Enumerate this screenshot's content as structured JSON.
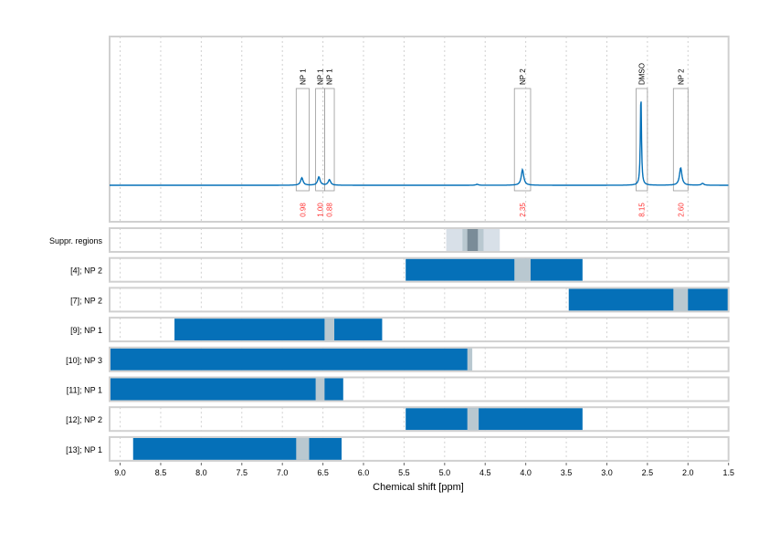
{
  "chart_data": [
    {
      "type": "line",
      "xlim": [
        9.13,
        1.5
      ],
      "grid": true,
      "colors": {
        "spectrum": "#0570b8",
        "integral_label": "#ff3333",
        "box": "#999999"
      },
      "peaks": [
        {
          "ppm": 6.76,
          "intensity": 0.08
        },
        {
          "ppm": 6.55,
          "intensity": 0.09
        },
        {
          "ppm": 6.42,
          "intensity": 0.06
        },
        {
          "ppm": 4.6,
          "intensity": 0.01
        },
        {
          "ppm": 4.04,
          "intensity": 0.17
        },
        {
          "ppm": 2.58,
          "intensity": 1.0
        },
        {
          "ppm": 2.09,
          "intensity": 0.19
        },
        {
          "ppm": 1.82,
          "intensity": 0.02
        }
      ],
      "annotations": [
        {
          "label": "NP 1",
          "from": 6.83,
          "to": 6.67,
          "integral": "0.98"
        },
        {
          "label": "NP 1",
          "from": 6.59,
          "to": 6.48,
          "integral": "1.00"
        },
        {
          "label": "NP 1",
          "from": 6.48,
          "to": 6.36,
          "integral": "0.88"
        },
        {
          "label": "NP 2",
          "from": 4.14,
          "to": 3.94,
          "integral": "2.35"
        },
        {
          "label": "DMSO",
          "from": 2.64,
          "to": 2.5,
          "integral": "8.15"
        },
        {
          "label": "NP 2",
          "from": 2.18,
          "to": 2.0,
          "integral": "2.60"
        }
      ]
    },
    {
      "type": "bar",
      "xlabel": "Chemical shift [ppm]",
      "xlim": [
        9.13,
        1.5
      ],
      "xticks": [
        "9.0",
        "8.5",
        "8.0",
        "7.5",
        "7.0",
        "6.5",
        "6.0",
        "5.5",
        "5.0",
        "4.5",
        "4.0",
        "3.5",
        "3.0",
        "2.5",
        "2.0",
        "1.5"
      ],
      "colors": {
        "range": "#0570b8",
        "overlap": "#b9c8d0",
        "suppr_light": "#d8e0e8",
        "suppr_mid": "#b9c8d0",
        "suppr_dark": "#7a8c98"
      },
      "suppr": {
        "label": "Suppr. regions",
        "light": [
          4.98,
          4.32
        ],
        "mid": [
          4.78,
          4.52
        ],
        "dark": [
          4.72,
          4.59
        ]
      },
      "rows": [
        {
          "label": "[4]; NP 2",
          "range": [
            5.48,
            3.3
          ],
          "overlap": [
            4.14,
            3.94
          ]
        },
        {
          "label": "[7]; NP 2",
          "range": [
            3.47,
            1.5
          ],
          "overlap": [
            2.18,
            2.0
          ]
        },
        {
          "label": "[9]; NP 1",
          "range": [
            8.33,
            5.77
          ],
          "overlap": [
            6.48,
            6.36
          ]
        },
        {
          "label": "[10]; NP 3",
          "range": [
            9.13,
            4.66
          ],
          "overlap": [
            4.72,
            4.66
          ]
        },
        {
          "label": "[11]; NP 1",
          "range": [
            9.13,
            6.25
          ],
          "overlap": [
            6.59,
            6.48
          ]
        },
        {
          "label": "[12]; NP 2",
          "range": [
            5.48,
            3.3
          ],
          "overlap": [
            4.72,
            4.58
          ]
        },
        {
          "label": "[13]; NP 1",
          "range": [
            8.84,
            6.27
          ],
          "overlap": [
            6.83,
            6.67
          ]
        }
      ]
    }
  ]
}
